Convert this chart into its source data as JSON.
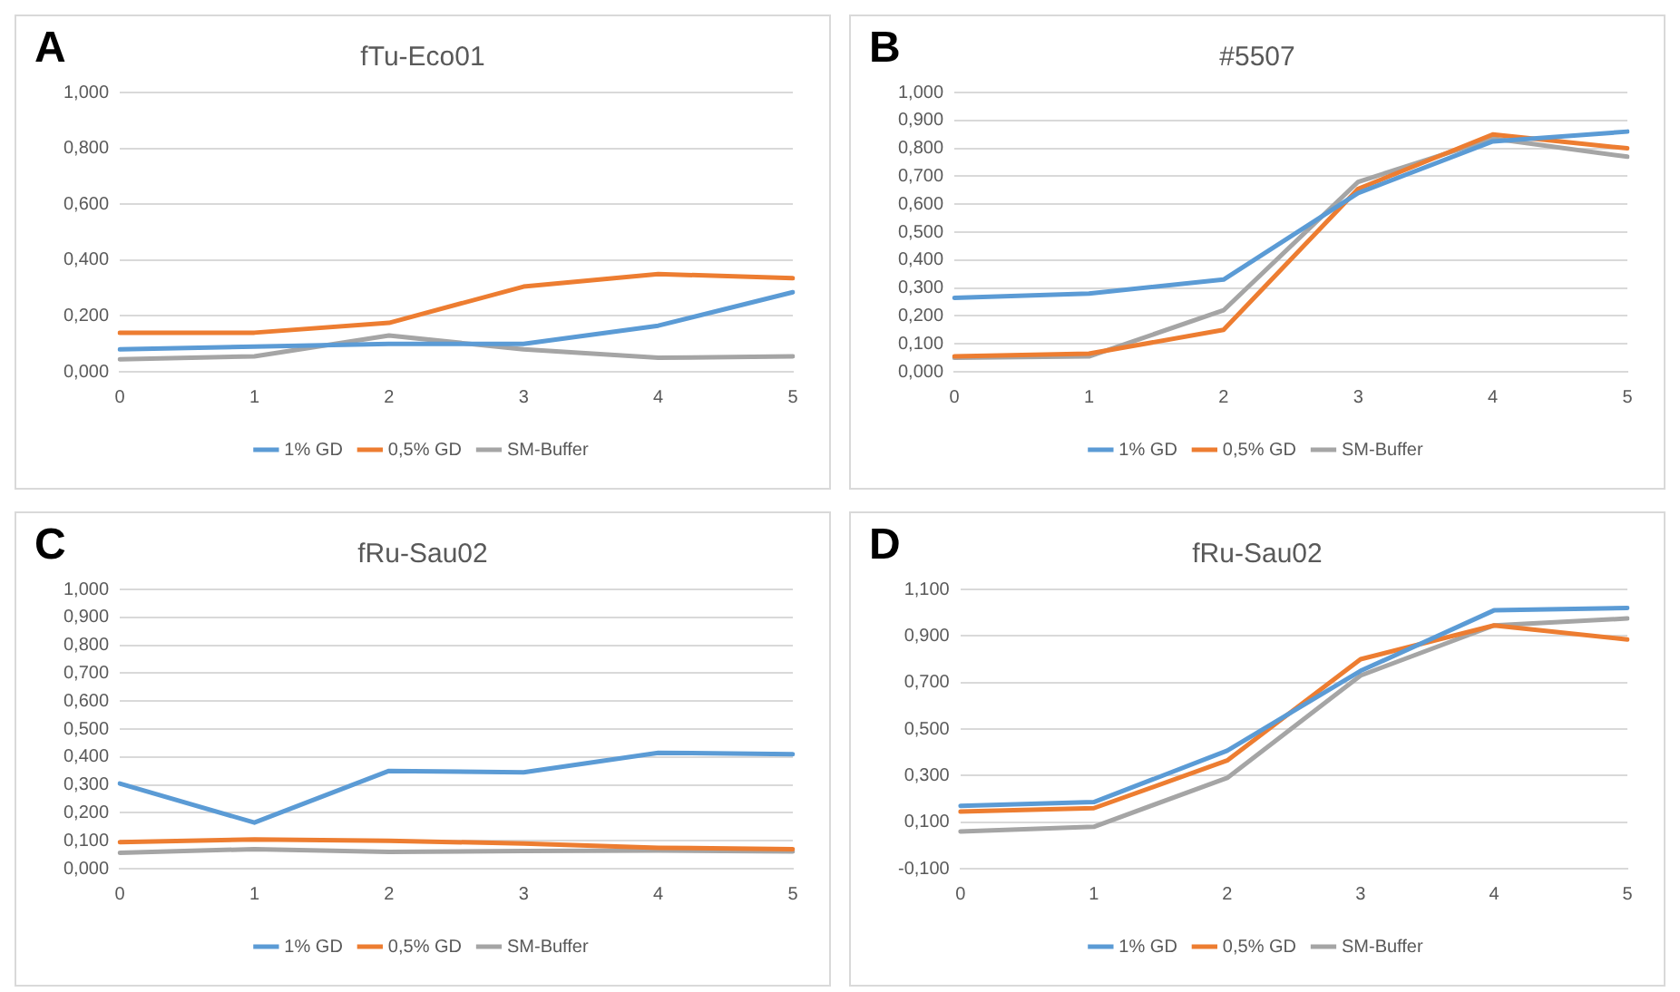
{
  "chart_data": [
    {
      "type": "line",
      "title": "fTu-Eco01",
      "annotations": [
        "A"
      ],
      "categories": [
        "0",
        "1",
        "2",
        "3",
        "4",
        "5"
      ],
      "legend": "bottom",
      "grid": "y",
      "marker": "none",
      "line_style": "solid",
      "ylim": [
        0,
        1
      ],
      "yticks": [
        {
          "value": 0,
          "label": "0,000"
        },
        {
          "value": 0.2,
          "label": "0,200"
        },
        {
          "value": 0.4,
          "label": "0,400"
        },
        {
          "value": 0.6,
          "label": "0,600"
        },
        {
          "value": 0.8,
          "label": "0,800"
        },
        {
          "value": 1,
          "label": "1,000"
        }
      ],
      "series": [
        {
          "name": "1% GD",
          "color": "#5b9bd5",
          "values": [
            0.08,
            0.09,
            0.1,
            0.1,
            0.165,
            0.285
          ]
        },
        {
          "name": "0,5% GD",
          "color": "#ed7d31",
          "values": [
            0.14,
            0.14,
            0.175,
            0.305,
            0.35,
            0.335
          ]
        },
        {
          "name": "SM-Buffer",
          "color": "#a5a5a5",
          "values": [
            0.045,
            0.055,
            0.13,
            0.08,
            0.05,
            0.055
          ]
        }
      ]
    },
    {
      "type": "line",
      "title": "#5507",
      "annotations": [
        "B"
      ],
      "categories": [
        "0",
        "1",
        "2",
        "3",
        "4",
        "5"
      ],
      "legend": "bottom",
      "grid": "y",
      "marker": "none",
      "line_style": "solid",
      "ylim": [
        0,
        1
      ],
      "yticks": [
        {
          "value": 0,
          "label": "0,000"
        },
        {
          "value": 0.1,
          "label": "0,100"
        },
        {
          "value": 0.2,
          "label": "0,200"
        },
        {
          "value": 0.3,
          "label": "0,300"
        },
        {
          "value": 0.4,
          "label": "0,400"
        },
        {
          "value": 0.5,
          "label": "0,500"
        },
        {
          "value": 0.6,
          "label": "0,600"
        },
        {
          "value": 0.7,
          "label": "0,700"
        },
        {
          "value": 0.8,
          "label": "0,800"
        },
        {
          "value": 0.9,
          "label": "0,900"
        },
        {
          "value": 1,
          "label": "1,000"
        }
      ],
      "series": [
        {
          "name": "1% GD",
          "color": "#5b9bd5",
          "values": [
            0.265,
            0.28,
            0.33,
            0.64,
            0.825,
            0.86
          ]
        },
        {
          "name": "0,5% GD",
          "color": "#ed7d31",
          "values": [
            0.055,
            0.065,
            0.15,
            0.655,
            0.85,
            0.8
          ]
        },
        {
          "name": "SM-Buffer",
          "color": "#a5a5a5",
          "values": [
            0.05,
            0.055,
            0.22,
            0.68,
            0.835,
            0.77
          ]
        }
      ]
    },
    {
      "type": "line",
      "title": "fRu-Sau02",
      "annotations": [
        "C"
      ],
      "categories": [
        "0",
        "1",
        "2",
        "3",
        "4",
        "5"
      ],
      "legend": "bottom",
      "grid": "y",
      "marker": "none",
      "line_style": "solid",
      "ylim": [
        0,
        1
      ],
      "yticks": [
        {
          "value": 0,
          "label": "0,000"
        },
        {
          "value": 0.1,
          "label": "0,100"
        },
        {
          "value": 0.2,
          "label": "0,200"
        },
        {
          "value": 0.3,
          "label": "0,300"
        },
        {
          "value": 0.4,
          "label": "0,400"
        },
        {
          "value": 0.5,
          "label": "0,500"
        },
        {
          "value": 0.6,
          "label": "0,600"
        },
        {
          "value": 0.7,
          "label": "0,700"
        },
        {
          "value": 0.8,
          "label": "0,800"
        },
        {
          "value": 0.9,
          "label": "0,900"
        },
        {
          "value": 1,
          "label": "1,000"
        }
      ],
      "series": [
        {
          "name": "1% GD",
          "color": "#5b9bd5",
          "values": [
            0.305,
            0.165,
            0.35,
            0.345,
            0.415,
            0.41
          ]
        },
        {
          "name": "0,5% GD",
          "color": "#ed7d31",
          "values": [
            0.095,
            0.105,
            0.1,
            0.09,
            0.075,
            0.07
          ]
        },
        {
          "name": "SM-Buffer",
          "color": "#a5a5a5",
          "values": [
            0.057,
            0.07,
            0.06,
            0.063,
            0.065,
            0.062
          ]
        }
      ]
    },
    {
      "type": "line",
      "title": "fRu-Sau02",
      "annotations": [
        "D"
      ],
      "categories": [
        "0",
        "1",
        "2",
        "3",
        "4",
        "5"
      ],
      "legend": "bottom",
      "grid": "y",
      "marker": "none",
      "line_style": "solid",
      "ylim": [
        -0.1,
        1.1
      ],
      "yticks": [
        {
          "value": -0.1,
          "label": "-0,100"
        },
        {
          "value": 0.1,
          "label": "0,100"
        },
        {
          "value": 0.3,
          "label": "0,300"
        },
        {
          "value": 0.5,
          "label": "0,500"
        },
        {
          "value": 0.7,
          "label": "0,700"
        },
        {
          "value": 0.9,
          "label": "0,900"
        },
        {
          "value": 1.1,
          "label": "1,100"
        }
      ],
      "series": [
        {
          "name": "1% GD",
          "color": "#5b9bd5",
          "values": [
            0.17,
            0.186,
            0.407,
            0.75,
            1.01,
            1.02
          ]
        },
        {
          "name": "0,5% GD",
          "color": "#ed7d31",
          "values": [
            0.145,
            0.16,
            0.365,
            0.8,
            0.945,
            0.885
          ]
        },
        {
          "name": "SM-Buffer",
          "color": "#a5a5a5",
          "values": [
            0.06,
            0.08,
            0.29,
            0.73,
            0.945,
            0.975
          ]
        }
      ]
    }
  ]
}
